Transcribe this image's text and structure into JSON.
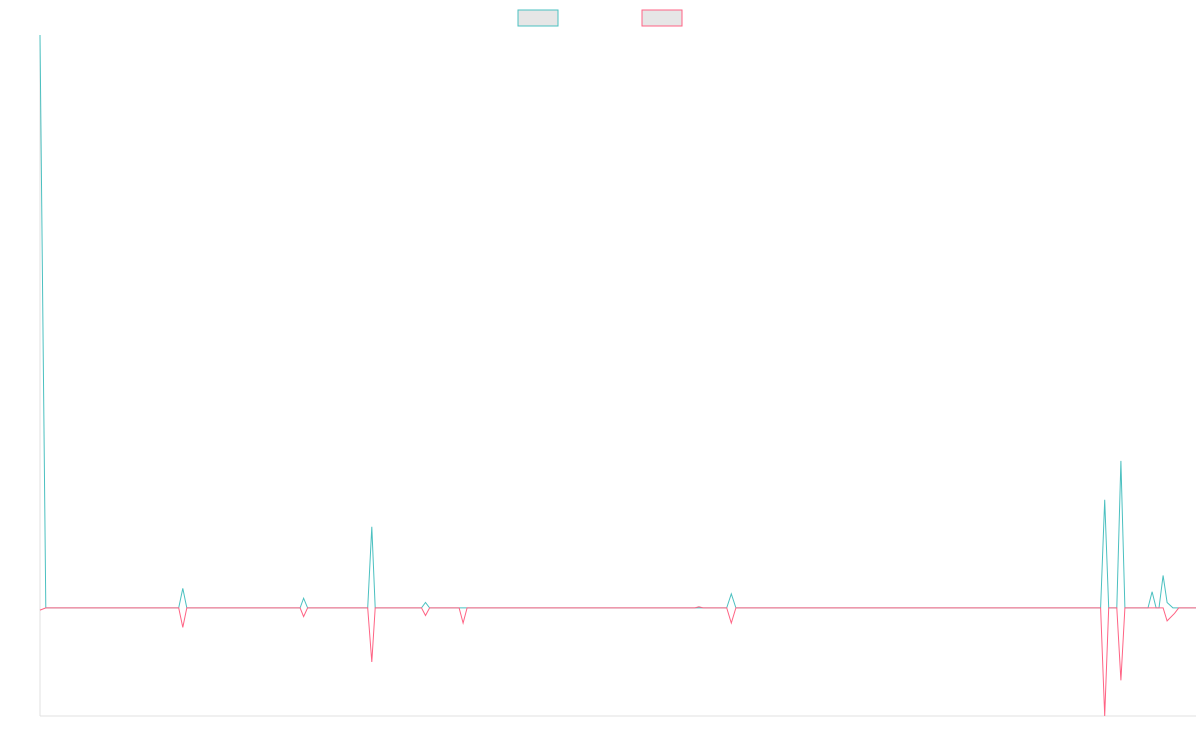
{
  "chart_data": {
    "type": "line",
    "title": "",
    "xlabel": "",
    "ylabel": "",
    "grid": false,
    "legend_position": "top-center",
    "x_range": [
      0,
      200
    ],
    "ylim": [
      -100,
      530
    ],
    "series": [
      {
        "label": "",
        "color": "#4bc0c0",
        "fill_color": "#e6e6e6",
        "points": [
          {
            "x": 0,
            "y": 530
          },
          {
            "x": 1,
            "y": 0
          },
          {
            "x": 24,
            "y": 0
          },
          {
            "x": 24.7,
            "y": 18
          },
          {
            "x": 25.4,
            "y": 0
          },
          {
            "x": 45,
            "y": 0
          },
          {
            "x": 45.6,
            "y": 9
          },
          {
            "x": 46.3,
            "y": 0
          },
          {
            "x": 56.7,
            "y": 0
          },
          {
            "x": 57.4,
            "y": 75
          },
          {
            "x": 58,
            "y": 0
          },
          {
            "x": 66,
            "y": 0
          },
          {
            "x": 66.7,
            "y": 5
          },
          {
            "x": 67.4,
            "y": 0
          },
          {
            "x": 118.8,
            "y": 0
          },
          {
            "x": 119.6,
            "y": 13
          },
          {
            "x": 120.4,
            "y": 0
          },
          {
            "x": 183.5,
            "y": 0
          },
          {
            "x": 184.2,
            "y": 100
          },
          {
            "x": 184.9,
            "y": 0
          },
          {
            "x": 186.3,
            "y": 0
          },
          {
            "x": 187,
            "y": 136
          },
          {
            "x": 187.7,
            "y": 0
          },
          {
            "x": 191.7,
            "y": 0
          },
          {
            "x": 192.4,
            "y": 15
          },
          {
            "x": 193.1,
            "y": 0
          },
          {
            "x": 193.6,
            "y": 0
          },
          {
            "x": 194.3,
            "y": 30
          },
          {
            "x": 195,
            "y": 5
          },
          {
            "x": 196,
            "y": 0
          },
          {
            "x": 200,
            "y": 0
          }
        ]
      },
      {
        "label": "",
        "color": "#ff6384",
        "fill_color": "#e6e6e6",
        "points": [
          {
            "x": 0,
            "y": -2
          },
          {
            "x": 1,
            "y": 0
          },
          {
            "x": 24,
            "y": 0
          },
          {
            "x": 24.7,
            "y": -18
          },
          {
            "x": 25.4,
            "y": 0
          },
          {
            "x": 45,
            "y": 0
          },
          {
            "x": 45.6,
            "y": -8
          },
          {
            "x": 46.3,
            "y": 0
          },
          {
            "x": 56.7,
            "y": 0
          },
          {
            "x": 57.4,
            "y": -50
          },
          {
            "x": 58,
            "y": 0
          },
          {
            "x": 66,
            "y": 0
          },
          {
            "x": 66.7,
            "y": -7
          },
          {
            "x": 67.4,
            "y": 0
          },
          {
            "x": 72.5,
            "y": 0
          },
          {
            "x": 73.2,
            "y": -14
          },
          {
            "x": 73.9,
            "y": 0
          },
          {
            "x": 113.3,
            "y": 0
          },
          {
            "x": 114,
            "y": 1
          },
          {
            "x": 114.7,
            "y": 0
          },
          {
            "x": 118.8,
            "y": 0
          },
          {
            "x": 119.6,
            "y": -14
          },
          {
            "x": 120.4,
            "y": 0
          },
          {
            "x": 183.5,
            "y": 0
          },
          {
            "x": 184.2,
            "y": -100
          },
          {
            "x": 184.9,
            "y": 0
          },
          {
            "x": 186.3,
            "y": 0
          },
          {
            "x": 187,
            "y": -67
          },
          {
            "x": 187.7,
            "y": 0
          },
          {
            "x": 194.3,
            "y": 0
          },
          {
            "x": 195,
            "y": -12
          },
          {
            "x": 196.3,
            "y": -5
          },
          {
            "x": 197,
            "y": 0
          },
          {
            "x": 200,
            "y": 0
          }
        ]
      }
    ]
  }
}
